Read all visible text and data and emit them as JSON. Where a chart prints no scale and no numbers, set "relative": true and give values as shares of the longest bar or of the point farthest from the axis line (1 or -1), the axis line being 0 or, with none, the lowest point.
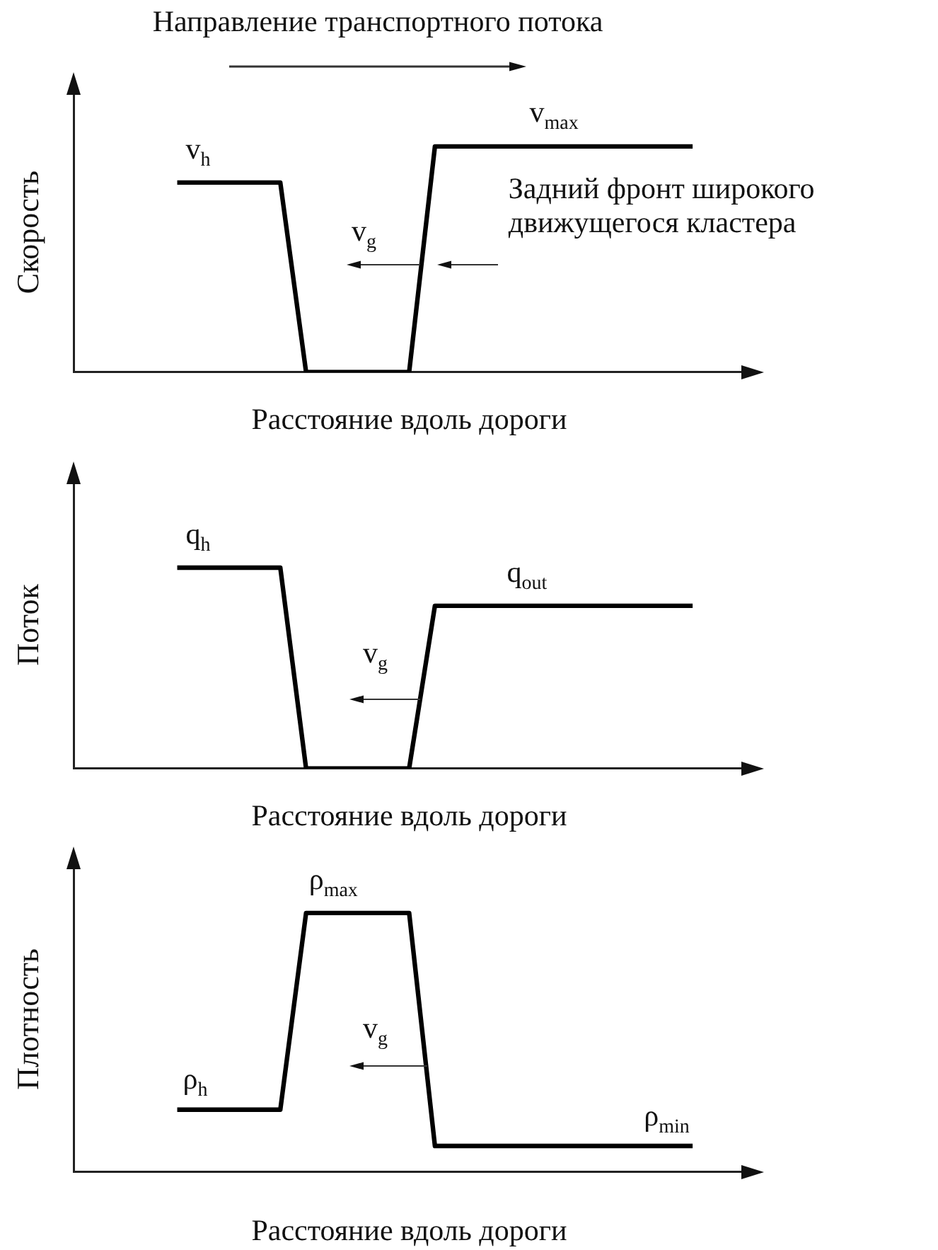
{
  "chart_data": [
    {
      "type": "line",
      "title": "Направление транспортного потока",
      "xlabel": "Расстояние вдоль дороги",
      "ylabel": "Скорость",
      "relative": true,
      "marker": "none",
      "color": "#000000",
      "categories": [
        null,
        null,
        null,
        null,
        null,
        null,
        null,
        null,
        null,
        null,
        null,
        null,
        null,
        null,
        null,
        null,
        null,
        null,
        null,
        null,
        null,
        null,
        null,
        null,
        null,
        null,
        null
      ],
      "values": [
        null,
        null,
        null,
        null,
        0.84,
        0.84,
        0.84,
        0.84,
        0.84,
        0,
        0,
        0,
        0,
        0,
        1,
        1,
        1,
        1,
        1,
        1,
        1,
        1,
        1,
        1,
        1,
        null,
        null
      ],
      "annotations": [
        "v$_{h}$",
        "v$_{max}$",
        "v$_{g}$",
        "Задний фронт широкого движущегося кластера"
      ]
    },
    {
      "type": "line",
      "xlabel": "Расстояние вдоль дороги",
      "ylabel": "Поток",
      "relative": true,
      "marker": "none",
      "color": "#000000",
      "categories": [
        null,
        null,
        null,
        null,
        null,
        null,
        null,
        null,
        null,
        null,
        null,
        null,
        null,
        null,
        null,
        null,
        null,
        null,
        null,
        null,
        null,
        null,
        null,
        null,
        null,
        null,
        null
      ],
      "values": [
        null,
        null,
        null,
        null,
        1,
        1,
        1,
        1,
        1,
        0,
        0,
        0,
        0,
        0,
        0.81,
        0.81,
        0.81,
        0.81,
        0.81,
        0.81,
        0.81,
        0.81,
        0.81,
        0.81,
        0.81,
        null,
        null
      ],
      "annotations": [
        "q$_{h}$",
        "q$_{out}$",
        "v$_{g}$"
      ]
    },
    {
      "type": "line",
      "xlabel": "Расстояние вдоль дороги",
      "ylabel": "Плотность",
      "relative": true,
      "marker": "none",
      "color": "#000000",
      "categories": [
        null,
        null,
        null,
        null,
        null,
        null,
        null,
        null,
        null,
        null,
        null,
        null,
        null,
        null,
        null,
        null,
        null,
        null,
        null,
        null,
        null,
        null,
        null,
        null,
        null,
        null,
        null
      ],
      "values": [
        null,
        null,
        null,
        null,
        0.24,
        0.24,
        0.24,
        0.24,
        0.24,
        1,
        1,
        1,
        1,
        1,
        0.1,
        0.1,
        0.1,
        0.1,
        0.1,
        0.1,
        0.1,
        0.1,
        0.1,
        0.1,
        0.1,
        null,
        null
      ],
      "annotations": [
        "ρ$_{h}$",
        "ρ$_{max}$",
        "v$_{g}$",
        "ρ$_{min}$"
      ]
    }
  ]
}
